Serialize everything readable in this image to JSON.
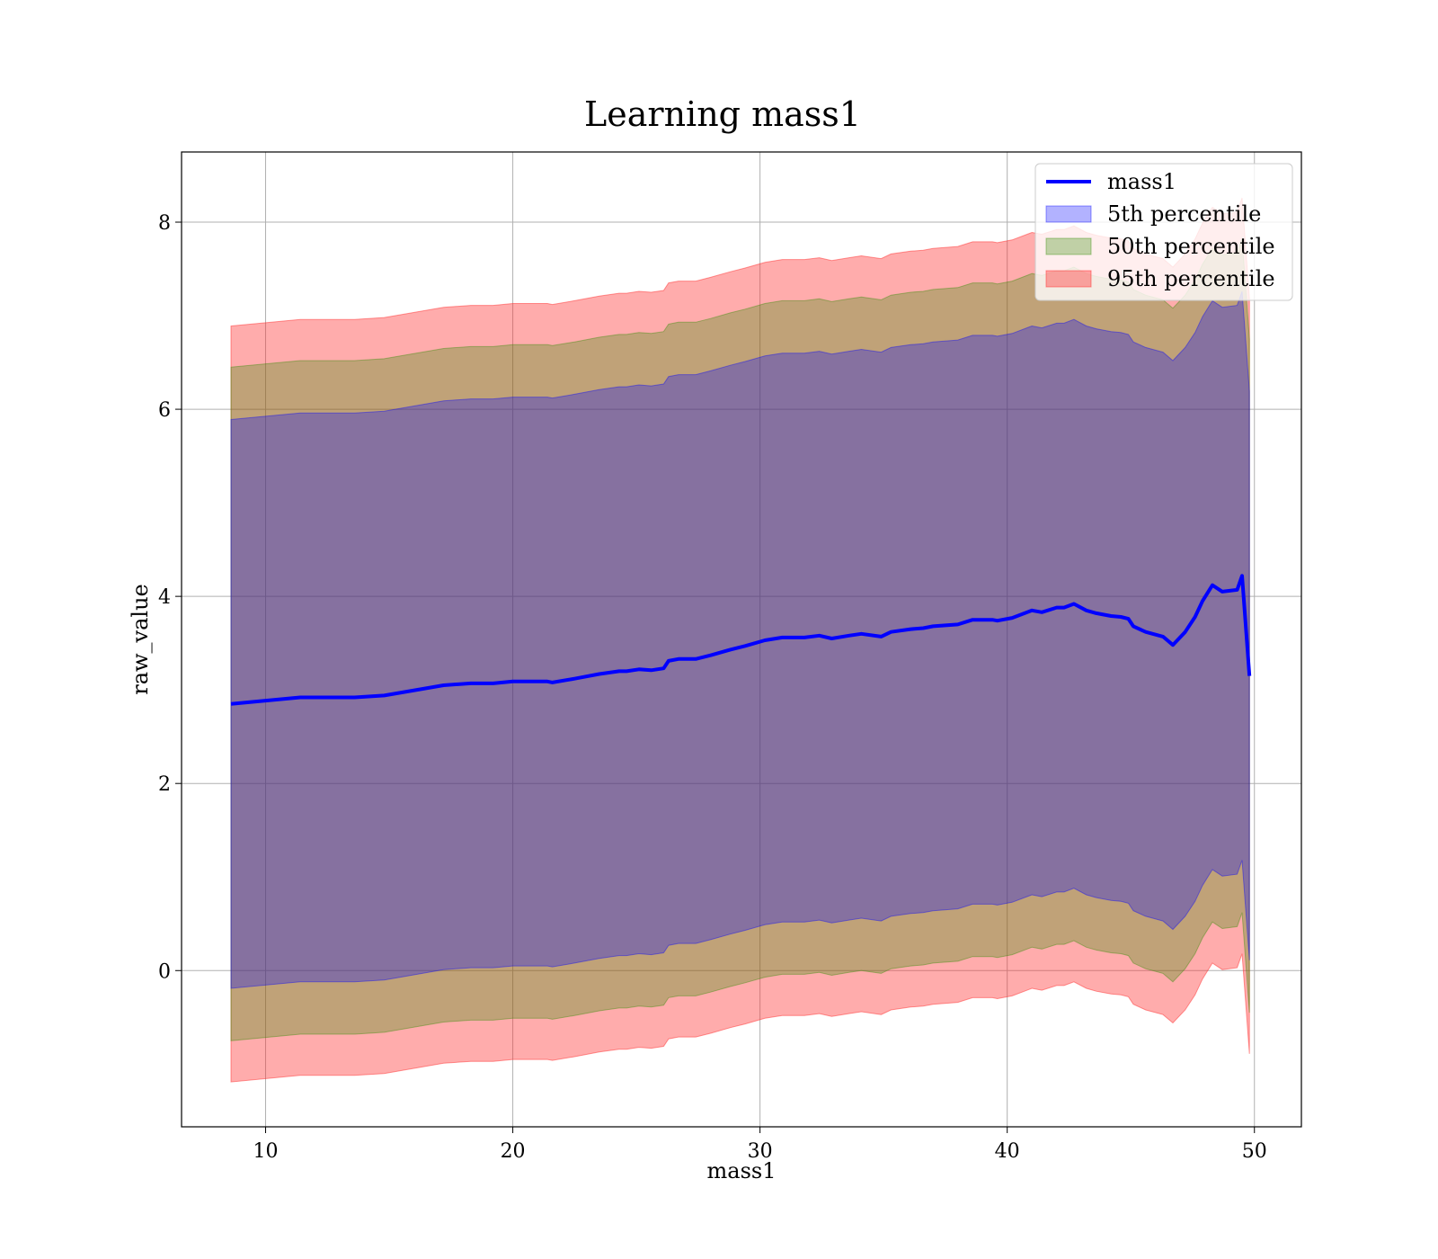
{
  "chart_data": {
    "type": "area",
    "title": "Learning mass1",
    "xlabel": "mass1",
    "ylabel": "raw_value",
    "xlim": [
      6.6,
      51.9
    ],
    "ylim": [
      -1.67,
      8.75
    ],
    "x_ticks": [
      10,
      20,
      30,
      40,
      50
    ],
    "x_tick_labels": [
      "10",
      "20",
      "30",
      "40",
      "50"
    ],
    "y_ticks": [
      0,
      2,
      4,
      6,
      8
    ],
    "y_tick_labels": [
      "0",
      "2",
      "4",
      "6",
      "8"
    ],
    "grid": true,
    "legend_position": "top-right",
    "x": [
      8.6,
      11.4,
      13.6,
      14.8,
      17.2,
      18.3,
      19.2,
      20.0,
      21.4,
      21.6,
      22.5,
      23.5,
      24.3,
      24.6,
      25.1,
      25.6,
      26.1,
      26.3,
      26.7,
      27.4,
      28.0,
      28.8,
      29.4,
      30.2,
      30.9,
      31.8,
      32.4,
      32.9,
      33.6,
      34.1,
      34.9,
      35.3,
      36.1,
      36.6,
      37.0,
      38.0,
      38.6,
      39.4,
      39.6,
      40.2,
      41.0,
      41.4,
      42.0,
      42.3,
      42.7,
      43.2,
      43.6,
      44.2,
      44.6,
      44.9,
      45.1,
      45.6,
      46.3,
      46.7,
      47.2,
      47.6,
      47.9,
      48.3,
      48.7,
      49.3,
      49.5,
      49.8
    ],
    "series": [
      {
        "name": "mass1",
        "values": [
          2.85,
          2.92,
          2.92,
          2.94,
          3.05,
          3.07,
          3.07,
          3.09,
          3.09,
          3.08,
          3.12,
          3.17,
          3.2,
          3.2,
          3.22,
          3.21,
          3.23,
          3.31,
          3.33,
          3.33,
          3.37,
          3.43,
          3.47,
          3.53,
          3.56,
          3.56,
          3.58,
          3.55,
          3.58,
          3.6,
          3.57,
          3.62,
          3.65,
          3.66,
          3.68,
          3.7,
          3.75,
          3.75,
          3.74,
          3.77,
          3.85,
          3.83,
          3.88,
          3.88,
          3.92,
          3.85,
          3.82,
          3.79,
          3.78,
          3.76,
          3.68,
          3.62,
          3.57,
          3.48,
          3.62,
          3.78,
          3.95,
          4.12,
          4.05,
          4.07,
          4.22,
          3.15
        ]
      },
      {
        "name": "5th percentile",
        "upper": [
          5.89,
          5.96,
          5.96,
          5.98,
          6.09,
          6.11,
          6.11,
          6.13,
          6.13,
          6.12,
          6.16,
          6.21,
          6.24,
          6.24,
          6.26,
          6.25,
          6.27,
          6.35,
          6.37,
          6.37,
          6.41,
          6.47,
          6.51,
          6.57,
          6.6,
          6.6,
          6.62,
          6.59,
          6.62,
          6.64,
          6.61,
          6.66,
          6.69,
          6.7,
          6.72,
          6.74,
          6.79,
          6.79,
          6.78,
          6.81,
          6.89,
          6.87,
          6.92,
          6.92,
          6.96,
          6.89,
          6.86,
          6.83,
          6.82,
          6.8,
          6.72,
          6.66,
          6.61,
          6.52,
          6.66,
          6.82,
          6.99,
          7.16,
          7.09,
          7.11,
          7.26,
          6.19
        ],
        "lower": [
          -0.19,
          -0.12,
          -0.12,
          -0.1,
          0.01,
          0.03,
          0.03,
          0.05,
          0.05,
          0.04,
          0.08,
          0.13,
          0.16,
          0.16,
          0.18,
          0.17,
          0.19,
          0.27,
          0.29,
          0.29,
          0.33,
          0.39,
          0.43,
          0.49,
          0.52,
          0.52,
          0.54,
          0.51,
          0.54,
          0.56,
          0.53,
          0.58,
          0.61,
          0.62,
          0.64,
          0.66,
          0.71,
          0.71,
          0.7,
          0.73,
          0.81,
          0.79,
          0.84,
          0.84,
          0.88,
          0.81,
          0.78,
          0.75,
          0.74,
          0.72,
          0.64,
          0.58,
          0.53,
          0.44,
          0.58,
          0.74,
          0.91,
          1.08,
          1.01,
          1.03,
          1.18,
          0.11
        ]
      },
      {
        "name": "50th percentile",
        "upper": [
          6.45,
          6.52,
          6.52,
          6.54,
          6.65,
          6.67,
          6.67,
          6.69,
          6.69,
          6.68,
          6.72,
          6.77,
          6.8,
          6.8,
          6.82,
          6.81,
          6.83,
          6.91,
          6.93,
          6.93,
          6.97,
          7.03,
          7.07,
          7.13,
          7.16,
          7.16,
          7.18,
          7.15,
          7.18,
          7.2,
          7.17,
          7.22,
          7.25,
          7.26,
          7.28,
          7.3,
          7.35,
          7.35,
          7.34,
          7.37,
          7.45,
          7.43,
          7.48,
          7.48,
          7.52,
          7.45,
          7.42,
          7.39,
          7.38,
          7.36,
          7.28,
          7.22,
          7.17,
          7.08,
          7.22,
          7.38,
          7.55,
          7.72,
          7.65,
          7.67,
          7.82,
          6.75
        ],
        "lower": [
          -0.75,
          -0.68,
          -0.68,
          -0.66,
          -0.55,
          -0.53,
          -0.53,
          -0.51,
          -0.51,
          -0.52,
          -0.48,
          -0.43,
          -0.4,
          -0.4,
          -0.38,
          -0.39,
          -0.37,
          -0.29,
          -0.27,
          -0.27,
          -0.23,
          -0.17,
          -0.13,
          -0.07,
          -0.04,
          -0.04,
          -0.02,
          -0.05,
          -0.02,
          0.0,
          -0.03,
          0.02,
          0.05,
          0.06,
          0.08,
          0.1,
          0.15,
          0.15,
          0.14,
          0.17,
          0.25,
          0.23,
          0.28,
          0.28,
          0.32,
          0.25,
          0.22,
          0.19,
          0.18,
          0.16,
          0.08,
          0.02,
          -0.03,
          -0.12,
          0.02,
          0.18,
          0.35,
          0.52,
          0.45,
          0.47,
          0.62,
          -0.45
        ]
      },
      {
        "name": "95th percentile",
        "upper": [
          6.89,
          6.96,
          6.96,
          6.98,
          7.09,
          7.11,
          7.11,
          7.13,
          7.13,
          7.12,
          7.16,
          7.21,
          7.24,
          7.24,
          7.26,
          7.25,
          7.27,
          7.35,
          7.37,
          7.37,
          7.41,
          7.47,
          7.51,
          7.57,
          7.6,
          7.6,
          7.62,
          7.59,
          7.62,
          7.64,
          7.61,
          7.66,
          7.69,
          7.7,
          7.72,
          7.74,
          7.79,
          7.79,
          7.78,
          7.81,
          7.89,
          7.87,
          7.92,
          7.92,
          7.96,
          7.89,
          7.86,
          7.83,
          7.82,
          7.8,
          7.72,
          7.66,
          7.61,
          7.52,
          7.66,
          7.82,
          7.99,
          8.16,
          8.09,
          8.11,
          8.26,
          7.19
        ],
        "lower": [
          -1.19,
          -1.12,
          -1.12,
          -1.1,
          -0.99,
          -0.97,
          -0.97,
          -0.95,
          -0.95,
          -0.96,
          -0.92,
          -0.87,
          -0.84,
          -0.84,
          -0.82,
          -0.83,
          -0.81,
          -0.73,
          -0.71,
          -0.71,
          -0.67,
          -0.61,
          -0.57,
          -0.51,
          -0.48,
          -0.48,
          -0.46,
          -0.49,
          -0.46,
          -0.44,
          -0.47,
          -0.42,
          -0.39,
          -0.38,
          -0.36,
          -0.34,
          -0.29,
          -0.29,
          -0.3,
          -0.27,
          -0.19,
          -0.21,
          -0.16,
          -0.16,
          -0.12,
          -0.19,
          -0.22,
          -0.25,
          -0.26,
          -0.28,
          -0.36,
          -0.42,
          -0.47,
          -0.56,
          -0.42,
          -0.26,
          -0.09,
          0.08,
          0.01,
          0.03,
          0.18,
          -0.89
        ]
      }
    ],
    "colors": {
      "line": "#0000ff",
      "band_5th": "#0000ff",
      "band_50th": "#2e8b00",
      "band_95th": "#ff3030",
      "grid": "#b0b0b0"
    }
  }
}
